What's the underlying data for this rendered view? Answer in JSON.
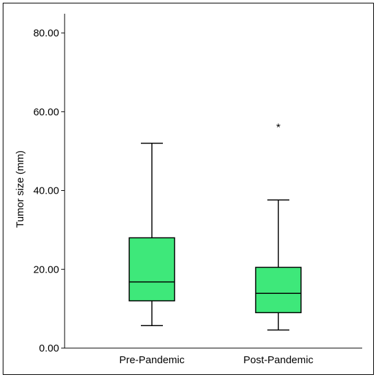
{
  "chart_data": {
    "type": "boxplot",
    "title": "",
    "xlabel": "",
    "ylabel": "Tumor size (mm)",
    "ylim": [
      0,
      80
    ],
    "yticks": [
      "0.00",
      "20.00",
      "40.00",
      "60.00",
      "80.00"
    ],
    "categories": [
      "Pre-Pandemic",
      "Post-Pandemic"
    ],
    "box_color": "#3ee87a",
    "outlier_marker": "*",
    "grid": false,
    "boxes": [
      {
        "category": "Pre-Pandemic",
        "whisker_low": 5.7,
        "q1": 12.0,
        "median": 16.8,
        "q3": 28.0,
        "whisker_high": 52.0,
        "outliers": []
      },
      {
        "category": "Post-Pandemic",
        "whisker_low": 4.6,
        "q1": 9.0,
        "median": 13.9,
        "q3": 20.5,
        "whisker_high": 37.6,
        "outliers": [
          56.5
        ]
      }
    ]
  }
}
